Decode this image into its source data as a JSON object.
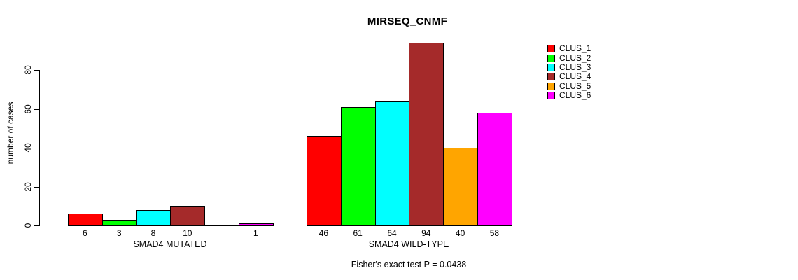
{
  "chart_data": {
    "type": "bar",
    "title": "MIRSEQ_CNMF",
    "ylabel": "number of cases",
    "xlabel": "",
    "yticks": [
      0,
      20,
      40,
      60,
      80
    ],
    "ylim": [
      0,
      95
    ],
    "grid": false,
    "legend": {
      "position": "top-right",
      "items": [
        {
          "label": "CLUS_1",
          "color": "#FF0000"
        },
        {
          "label": "CLUS_2",
          "color": "#00FF00"
        },
        {
          "label": "CLUS_3",
          "color": "#00FFFF"
        },
        {
          "label": "CLUS_4",
          "color": "#A52A2A"
        },
        {
          "label": "CLUS_5",
          "color": "#FFA500"
        },
        {
          "label": "CLUS_6",
          "color": "#FF00FF"
        }
      ]
    },
    "series_colors": [
      "#FF0000",
      "#00FF00",
      "#00FFFF",
      "#A52A2A",
      "#FFA500",
      "#FF00FF"
    ],
    "groups": [
      {
        "label": "SMAD4 MUTATED",
        "categories": [
          "CLUS_1",
          "CLUS_2",
          "CLUS_3",
          "CLUS_4",
          "CLUS_5",
          "CLUS_6"
        ],
        "values": [
          6,
          3,
          8,
          10,
          0,
          1
        ],
        "bar_labels": [
          "6",
          "3",
          "8",
          "10",
          "",
          "1"
        ]
      },
      {
        "label": "SMAD4 WILD-TYPE",
        "categories": [
          "CLUS_1",
          "CLUS_2",
          "CLUS_3",
          "CLUS_4",
          "CLUS_5",
          "CLUS_6"
        ],
        "values": [
          46,
          61,
          64,
          94,
          40,
          58
        ],
        "bar_labels": [
          "46",
          "61",
          "64",
          "94",
          "40",
          "58"
        ]
      }
    ],
    "annotation": "Fisher's exact test P = 0.0438"
  }
}
